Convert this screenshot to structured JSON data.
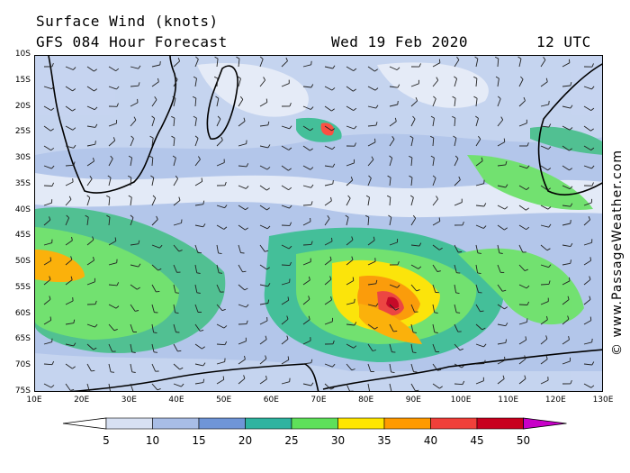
{
  "header": {
    "title_line1": "Surface Wind (knots)",
    "title_line2": "GFS 084 Hour Forecast",
    "date": "Wed 19 Feb 2020",
    "time": "12 UTC"
  },
  "credit": "© www.PassageWeather.com",
  "map": {
    "lat_labels": [
      "10S",
      "15S",
      "20S",
      "25S",
      "30S",
      "35S",
      "40S",
      "45S",
      "50S",
      "55S",
      "60S",
      "65S",
      "70S",
      "75S"
    ],
    "lon_labels": [
      "10E",
      "20E",
      "30E",
      "40E",
      "50E",
      "60E",
      "70E",
      "80E",
      "90E",
      "100E",
      "110E",
      "120E",
      "130E"
    ],
    "lon_range": [
      10,
      130
    ],
    "lat_range": [
      -10,
      -75
    ],
    "features": [
      "africa-coast-icon",
      "madagascar-icon",
      "australia-coast-icon",
      "antarctica-coast-icon",
      "wind-barbs-icon"
    ]
  },
  "legend": {
    "unit": "knots",
    "labels": [
      "5",
      "10",
      "15",
      "20",
      "25",
      "30",
      "35",
      "40",
      "45",
      "50"
    ],
    "colors": [
      "#ffffff",
      "#d7e0f2",
      "#a8bde6",
      "#6f95d7",
      "#2fb3a0",
      "#5ee05a",
      "#ffe600",
      "#ff9a00",
      "#f0403a",
      "#c8001e",
      "#c800c8"
    ]
  }
}
